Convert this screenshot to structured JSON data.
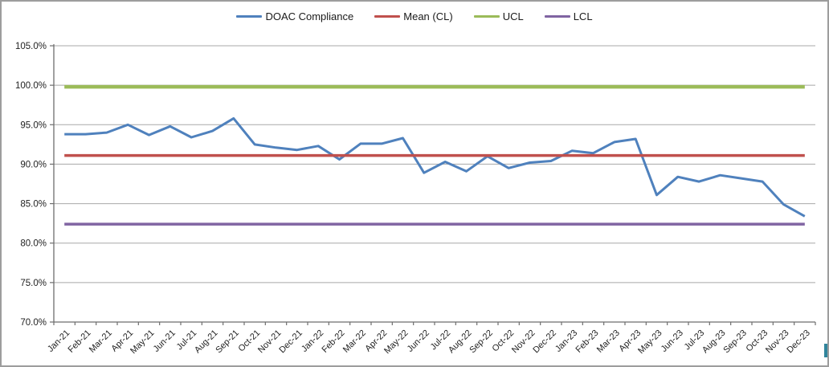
{
  "legend": {
    "items": [
      {
        "label": "DOAC Compliance",
        "color": "#4F81BD"
      },
      {
        "label": "Mean (CL)",
        "color": "#C0504D"
      },
      {
        "label": "UCL",
        "color": "#9BBB59"
      },
      {
        "label": "LCL",
        "color": "#8064A2"
      }
    ]
  },
  "chart_data": {
    "type": "line",
    "title": "",
    "xlabel": "",
    "ylabel": "",
    "ylim": [
      70,
      105
    ],
    "ytick_step": 5,
    "ytick_labels": [
      "70.0%",
      "75.0%",
      "80.0%",
      "85.0%",
      "90.0%",
      "95.0%",
      "100.0%",
      "105.0%"
    ],
    "grid": "horizontal",
    "legend_position": "top-center",
    "categories": [
      "Jan-21",
      "Feb-21",
      "Mar-21",
      "Apr-21",
      "May-21",
      "Jun-21",
      "Jul-21",
      "Aug-21",
      "Sep-21",
      "Oct-21",
      "Nov-21",
      "Dec-21",
      "Jan-22",
      "Feb-22",
      "Mar-22",
      "Apr-22",
      "May-22",
      "Jun-22",
      "Jul-22",
      "Aug-22",
      "Sep-22",
      "Oct-22",
      "Nov-22",
      "Dec-22",
      "Jan-23",
      "Feb-23",
      "Mar-23",
      "Apr-23",
      "May-23",
      "Jun-23",
      "Jul-23",
      "Aug-23",
      "Sep-23",
      "Oct-23",
      "Nov-23",
      "Dec-23"
    ],
    "series": [
      {
        "name": "DOAC Compliance",
        "color": "#4F81BD",
        "values": [
          93.8,
          93.8,
          94.0,
          95.0,
          93.7,
          94.8,
          93.4,
          94.2,
          95.8,
          92.5,
          92.1,
          91.8,
          92.3,
          90.6,
          92.6,
          92.6,
          93.3,
          88.9,
          90.3,
          89.1,
          91.0,
          89.5,
          90.2,
          90.4,
          91.7,
          91.4,
          92.8,
          93.2,
          86.1,
          88.4,
          87.8,
          88.6,
          88.2,
          87.8,
          84.9,
          83.4
        ]
      },
      {
        "name": "Mean (CL)",
        "color": "#C0504D",
        "constant": 91.1
      },
      {
        "name": "UCL",
        "color": "#9BBB59",
        "constant": 99.8
      },
      {
        "name": "LCL",
        "color": "#8064A2",
        "constant": 82.4
      }
    ],
    "colors": {
      "gridline": "#a8a8a8",
      "axis": "#6e6e6e",
      "edge_artifact": "#31859C"
    }
  }
}
